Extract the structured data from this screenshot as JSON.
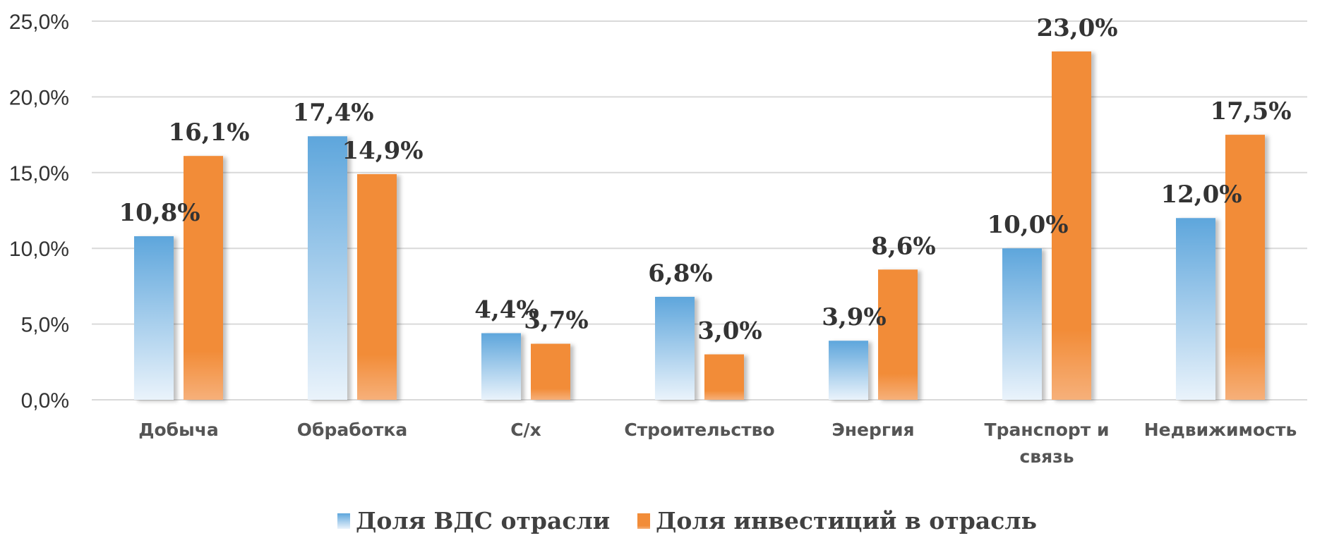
{
  "chart_data": {
    "type": "bar",
    "categories": [
      [
        "Добыча"
      ],
      [
        "Обработка"
      ],
      [
        "С/х"
      ],
      [
        "Строительство"
      ],
      [
        "Энергия"
      ],
      [
        "Транспорт и",
        "связь"
      ],
      [
        "Недвижимость"
      ]
    ],
    "series": [
      {
        "name": "Доля ВДС отрасли",
        "values": [
          10.8,
          17.4,
          4.4,
          6.8,
          3.9,
          10.0,
          12.0
        ],
        "labels": [
          "10,8%",
          "17,4%",
          "4,4%",
          "6,8%",
          "3,9%",
          "10,0%",
          "12,0%"
        ],
        "color_top": "#5ea6dc",
        "color_bottom": "#eaf3fb"
      },
      {
        "name": "Доля инвестиций в отрасль",
        "values": [
          16.1,
          14.9,
          3.7,
          3.0,
          8.6,
          23.0,
          17.5
        ],
        "labels": [
          "16,1%",
          "14,9%",
          "3,7%",
          "3,0%",
          "8,6%",
          "23,0%",
          "17,5%"
        ],
        "color_top": "#f28c38",
        "color_bottom": "#f6b07a"
      }
    ],
    "y_ticks": [
      0,
      5,
      10,
      15,
      20,
      25
    ],
    "y_tick_labels": [
      "0,0%",
      "5,0%",
      "10,0%",
      "15,0%",
      "20,0%",
      "25,0%"
    ],
    "ylim": [
      0,
      25
    ],
    "grid": true,
    "legend_position": "bottom"
  }
}
